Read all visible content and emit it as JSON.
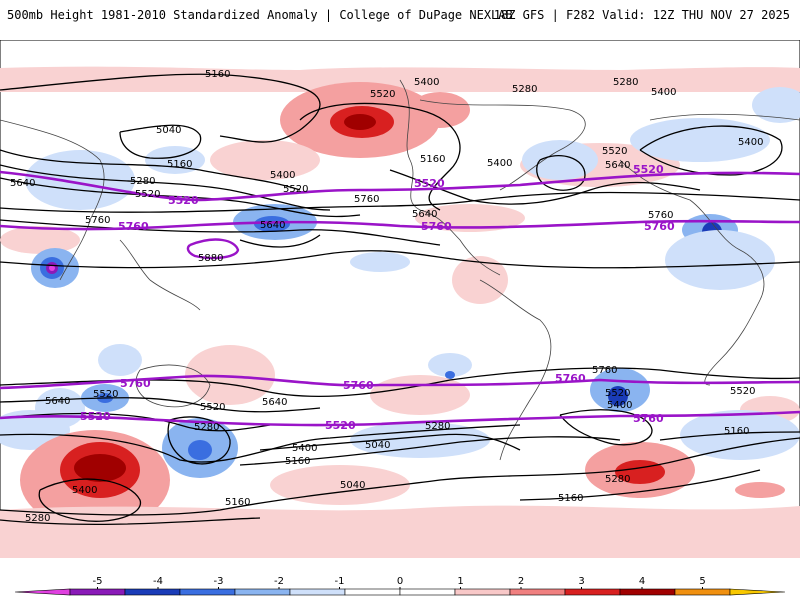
{
  "header": {
    "title": "500mb Height 1981-2010 Standardized Anomaly | College of DuPage NEXLAB",
    "run_info": "18Z GFS | F282 Valid: 12Z THU NOV 27 2025"
  },
  "contour_labels": {
    "black": [
      "5160",
      "5400",
      "5520",
      "5280",
      "5400",
      "5040",
      "5280",
      "5160",
      "5400",
      "5640",
      "5280",
      "5520",
      "5520",
      "5400",
      "5760",
      "5640",
      "5520",
      "5640",
      "5160",
      "5400",
      "5760",
      "5640",
      "5880",
      "5760",
      "5640",
      "5520",
      "5520",
      "5400",
      "5640",
      "5520",
      "5400",
      "5160",
      "5280",
      "5040",
      "5520",
      "5160",
      "5280",
      "5040",
      "5400",
      "5160",
      "5280",
      "5160",
      "5280",
      "5760"
    ],
    "purple": [
      "5520",
      "5520",
      "5520",
      "5760",
      "5760",
      "5760",
      "5760",
      "5520",
      "5520",
      "5760",
      "5760",
      "5760"
    ]
  },
  "colorbar": {
    "ticks": [
      "-5",
      "-4",
      "-3",
      "-2",
      "-1",
      "0",
      "1",
      "2",
      "3",
      "4",
      "5"
    ],
    "colors": [
      "#e040e0",
      "#8a1ab8",
      "#1a3cb8",
      "#3a6ee0",
      "#8ab4f0",
      "#cfe0fa",
      "#ffffff",
      "#ffffff",
      "#f8c8c8",
      "#f08080",
      "#d82020",
      "#a00000",
      "#f09010",
      "#f8c800"
    ]
  }
}
